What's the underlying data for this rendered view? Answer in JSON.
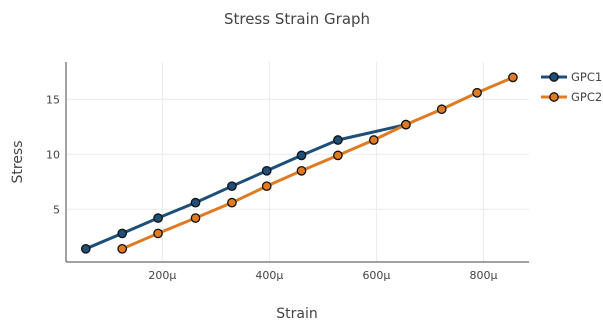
{
  "chart_data": {
    "type": "line",
    "title": "Stress Strain Graph",
    "xlabel": "Strain",
    "ylabel": "Stress",
    "xlim": [
      2e-05,
      0.000885
    ],
    "ylim": [
      0.2,
      18.4
    ],
    "x_ticks": [
      {
        "value": 0.0002,
        "label": "200μ"
      },
      {
        "value": 0.0004,
        "label": "400μ"
      },
      {
        "value": 0.0006,
        "label": "600μ"
      },
      {
        "value": 0.0008,
        "label": "800μ"
      }
    ],
    "y_ticks": [
      {
        "value": 5,
        "label": "5"
      },
      {
        "value": 10,
        "label": "10"
      },
      {
        "value": 15,
        "label": "15"
      }
    ],
    "grid": true,
    "legend_position": "top-right",
    "series": [
      {
        "name": "GPC1",
        "color": "#1f4e79",
        "points": [
          [
            5.7e-05,
            1.4
          ],
          [
            0.000125,
            2.8
          ],
          [
            0.000192,
            4.2
          ],
          [
            0.000262,
            5.6
          ],
          [
            0.00033,
            7.1
          ],
          [
            0.000395,
            8.5
          ],
          [
            0.00046,
            9.9
          ],
          [
            0.000528,
            11.3
          ],
          [
            0.000655,
            12.7
          ]
        ]
      },
      {
        "name": "GPC2",
        "color": "#e07b22",
        "points": [
          [
            0.000125,
            1.4
          ],
          [
            0.000192,
            2.8
          ],
          [
            0.000262,
            4.2
          ],
          [
            0.00033,
            5.6
          ],
          [
            0.000395,
            7.1
          ],
          [
            0.00046,
            8.5
          ],
          [
            0.000528,
            9.9
          ],
          [
            0.000595,
            11.3
          ],
          [
            0.000655,
            12.7
          ],
          [
            0.000722,
            14.1
          ],
          [
            0.000788,
            15.6
          ],
          [
            0.000855,
            17.0
          ]
        ]
      }
    ]
  }
}
